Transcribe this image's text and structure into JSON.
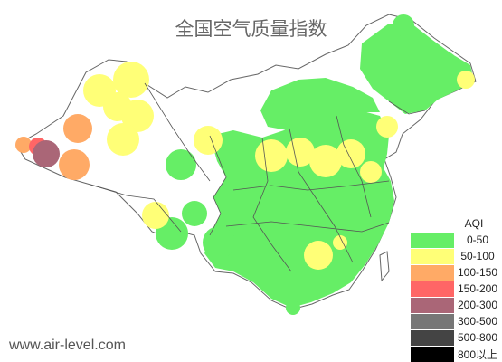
{
  "title": "全国空气质量指数",
  "footer": "www.air-level.com",
  "legend": {
    "title": "AQI",
    "items": [
      {
        "label": "0-50",
        "color": "#66ee66"
      },
      {
        "label": "50-100",
        "color": "#ffff77"
      },
      {
        "label": "100-150",
        "color": "#ffaa66"
      },
      {
        "label": "150-200",
        "color": "#ff6666"
      },
      {
        "label": "200-300",
        "color": "#aa6677"
      },
      {
        "label": "300-500",
        "color": "#777777"
      },
      {
        "label": "500-800",
        "color": "#444444"
      },
      {
        "label": "800以上",
        "color": "#000000"
      }
    ]
  }
}
